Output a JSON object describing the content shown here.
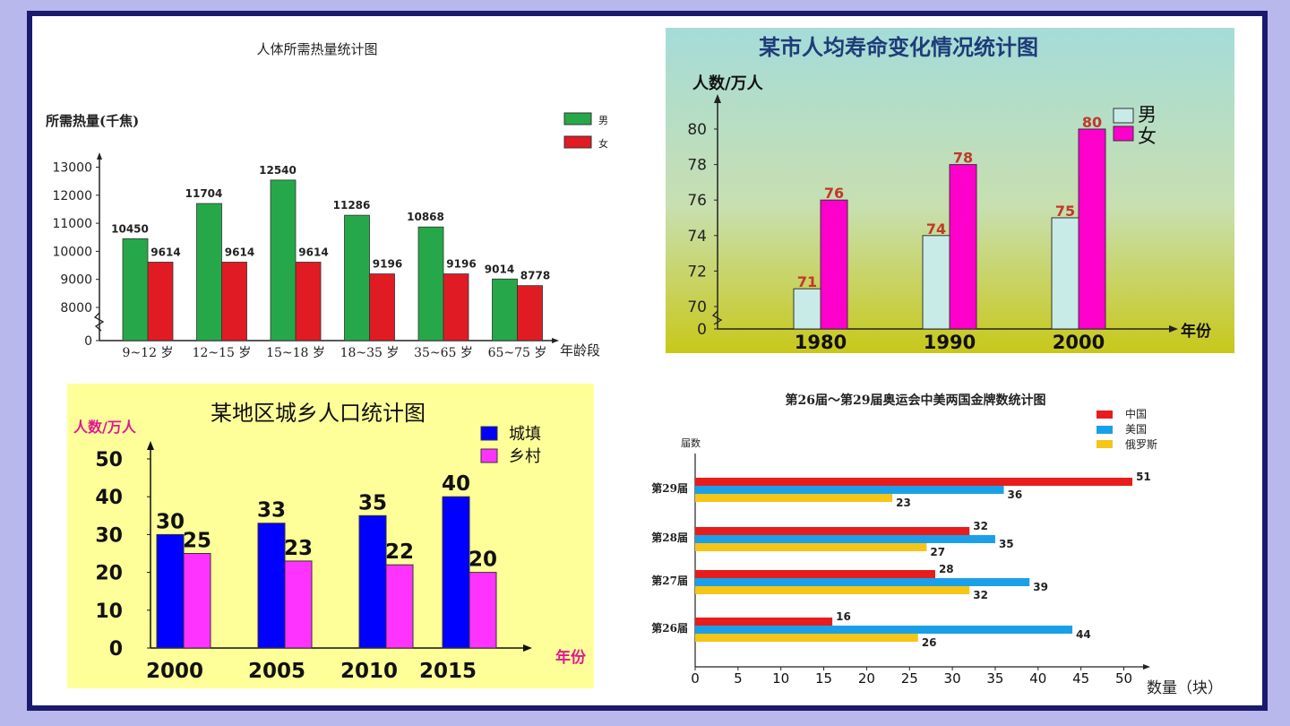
{
  "colors": {
    "c1_male": "#26a84a",
    "c1_female": "#e01b24",
    "c2_male": "#c9ebe8",
    "c2_female": "#ff00cc",
    "c2_label": "#c0392b",
    "c3_town": "#0000ff",
    "c3_village": "#ff33ff",
    "c3_axislabel": "#e01890",
    "c4_china": "#e81c1c",
    "c4_usa": "#1aa0e8",
    "c4_russia": "#f5c518"
  },
  "chart_data": [
    {
      "type": "bar",
      "title": "人体所需热量统计图",
      "ylabel": "所需热量(千焦)",
      "xlabel": "年龄段",
      "categories": [
        "9~12 岁",
        "12~15 岁",
        "15~18 岁",
        "18~35 岁",
        "35~65 岁",
        "65~75 岁"
      ],
      "yticks": [
        "0",
        "8000",
        "9000",
        "10000",
        "11000",
        "12000",
        "13000"
      ],
      "ylim": [
        8000,
        13000
      ],
      "axis_break": true,
      "series": [
        {
          "name": "男",
          "values": [
            10450,
            11704,
            12540,
            11286,
            10868,
            9014
          ]
        },
        {
          "name": "女",
          "values": [
            9614,
            9614,
            9614,
            9196,
            9196,
            8778
          ]
        }
      ],
      "legend": "top-right"
    },
    {
      "type": "bar",
      "title": "某市人均寿命变化情况统计图",
      "ylabel": "人数/万人",
      "xlabel": "年份",
      "categories": [
        "1980",
        "1990",
        "2000"
      ],
      "yticks": [
        "0",
        "70",
        "72",
        "74",
        "76",
        "78",
        "80"
      ],
      "ylim": [
        69,
        81
      ],
      "axis_break": true,
      "series": [
        {
          "name": "男",
          "values": [
            71,
            74,
            75
          ]
        },
        {
          "name": "女",
          "values": [
            76,
            78,
            80
          ]
        }
      ],
      "legend": "top-right"
    },
    {
      "type": "bar",
      "title": "某地区城乡人口统计图",
      "ylabel": "人数/万人",
      "xlabel": "年份",
      "categories": [
        "2000",
        "2005",
        "2010",
        "2015"
      ],
      "yticks": [
        "0",
        "10",
        "20",
        "30",
        "40",
        "50"
      ],
      "ylim": [
        0,
        50
      ],
      "series": [
        {
          "name": "城填",
          "values": [
            30,
            33,
            35,
            40
          ]
        },
        {
          "name": "乡村",
          "values": [
            25,
            23,
            22,
            20
          ]
        }
      ],
      "legend": "top-right"
    },
    {
      "type": "bar",
      "orientation": "horizontal",
      "title": "第26届～第29届奥运会中美两国金牌数统计图",
      "ylabel": "届数",
      "xlabel": "数量（块）",
      "categories": [
        "第29届",
        "第28届",
        "第27届",
        "第26届"
      ],
      "xticks": [
        "0",
        "5",
        "10",
        "15",
        "20",
        "25",
        "30",
        "35",
        "40",
        "45",
        "50"
      ],
      "xlim": [
        0,
        50
      ],
      "series": [
        {
          "name": "中国",
          "values": [
            51,
            32,
            28,
            16
          ]
        },
        {
          "name": "美国",
          "values": [
            36,
            35,
            39,
            44
          ]
        },
        {
          "name": "俄罗斯",
          "values": [
            23,
            27,
            32,
            26
          ]
        }
      ],
      "legend": "top-right"
    }
  ]
}
